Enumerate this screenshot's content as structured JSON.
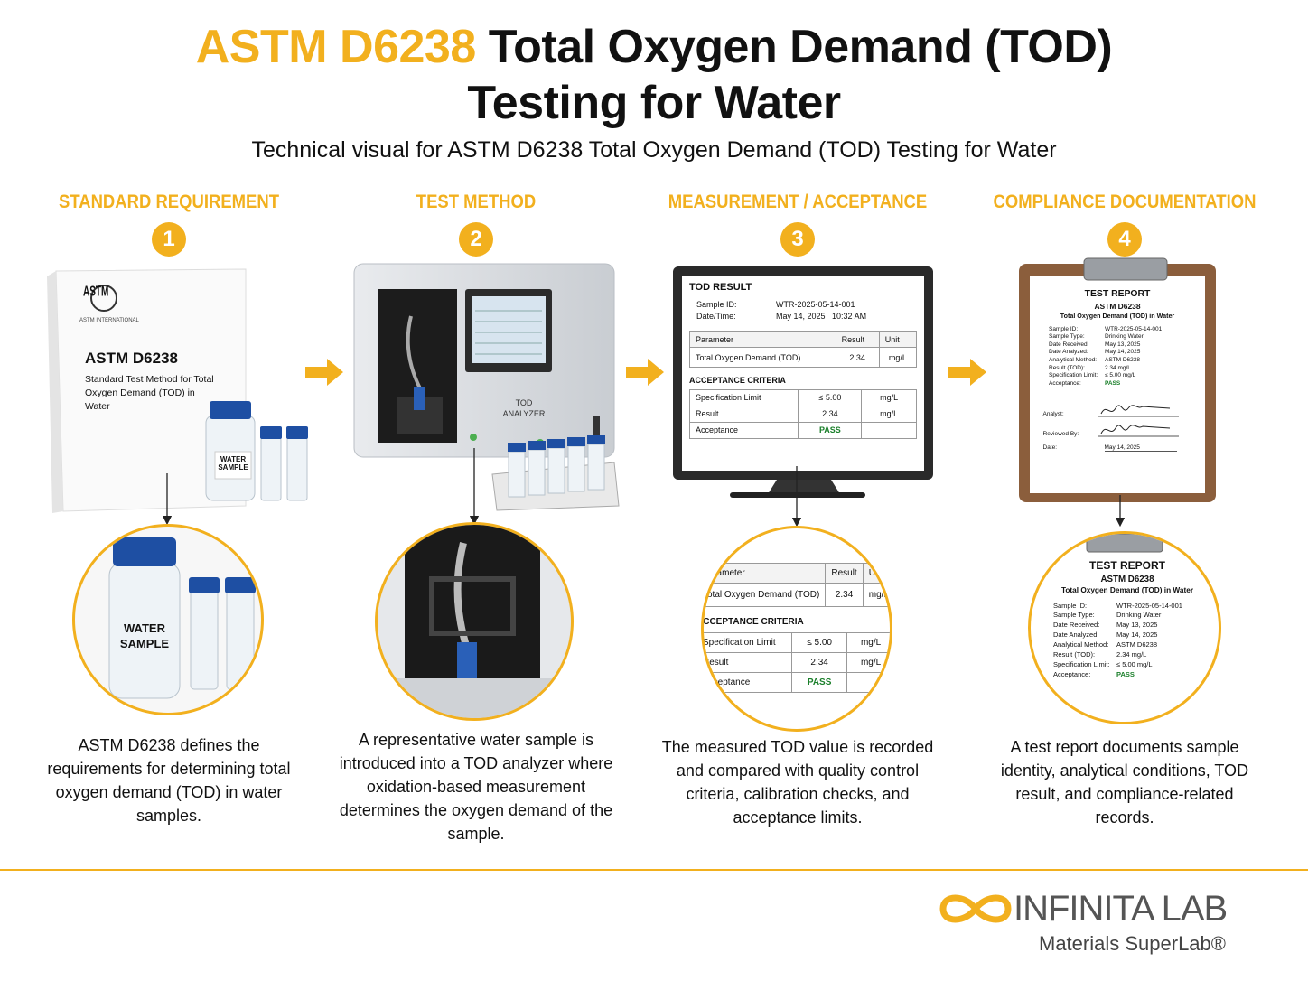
{
  "header": {
    "title_highlight": "ASTM D6238",
    "title_line1": "Total Oxygen Demand (TOD)",
    "title_line2": "Testing for Water",
    "subtitle": "Technical visual for ASTM D6238 Total Oxygen Demand (TOD) Testing for Water"
  },
  "steps": [
    {
      "heading": "STANDARD REQUIREMENT",
      "number": "1",
      "description": "ASTM D6238 defines the requirements for determining total oxygen demand (TOD) in water samples."
    },
    {
      "heading": "TEST METHOD",
      "number": "2",
      "description": "A representative water sample is introduced into a TOD analyzer where oxidation-based measurement determines the oxygen demand of the sample."
    },
    {
      "heading": "MEASUREMENT / ACCEPTANCE",
      "number": "3",
      "description": "The measured TOD value is recorded and compared with quality control criteria, calibration checks, and acceptance limits."
    },
    {
      "heading": "COMPLIANCE DOCUMENTATION",
      "number": "4",
      "description": "A test report documents sample identity, analytical conditions, TOD result, and compliance-related records."
    }
  ],
  "standard_doc": {
    "logo": "ASTM",
    "organization": "ASTM INTERNATIONAL",
    "code": "ASTM D6238",
    "title": "Standard Test Method for Total Oxygen Demand (TOD) in Water",
    "bottle_label": "WATER SAMPLE"
  },
  "analyzer": {
    "label": "TOD ANALYZER"
  },
  "result_screen": {
    "title": "TOD RESULT",
    "meta": [
      {
        "label": "Sample ID:",
        "value": "WTR-2025-05-14-001"
      },
      {
        "label": "Date/Time:",
        "value": "May 14, 2025   10:32 AM"
      }
    ],
    "columns": [
      "Parameter",
      "Result",
      "Unit"
    ],
    "measurement": {
      "parameter": "Total Oxygen Demand (TOD)",
      "result": "2.34",
      "unit": "mg/L"
    },
    "criteria_title": "ACCEPTANCE CRITERIA",
    "criteria": [
      {
        "label": "Specification Limit",
        "value": "≤ 5.00",
        "unit": "mg/L"
      },
      {
        "label": "Result",
        "value": "2.34",
        "unit": "mg/L"
      },
      {
        "label": "Acceptance",
        "value": "PASS"
      }
    ]
  },
  "report": {
    "title": "TEST REPORT",
    "standard": "ASTM D6238",
    "subtitle": "Total Oxygen Demand (TOD) in Water",
    "fields": [
      {
        "label": "Sample ID:",
        "value": "WTR-2025-05-14-001"
      },
      {
        "label": "Sample Type:",
        "value": "Drinking Water"
      },
      {
        "label": "Date Received:",
        "value": "May 13, 2025"
      },
      {
        "label": "Date Analyzed:",
        "value": "May 14, 2025"
      },
      {
        "label": "Analytical Method:",
        "value": "ASTM D6238"
      },
      {
        "label": "Result (TOD):",
        "value": "2.34 mg/L"
      },
      {
        "label": "Specification Limit:",
        "value": "≤ 5.00 mg/L"
      },
      {
        "label": "Acceptance:",
        "value": "PASS"
      }
    ],
    "signatures": [
      "Analyst:",
      "Reviewed By:"
    ],
    "date_label": "Date:",
    "date": "May 14, 2025"
  },
  "footer": {
    "brand": "INFINITA LAB",
    "tagline": "Materials SuperLab®"
  }
}
